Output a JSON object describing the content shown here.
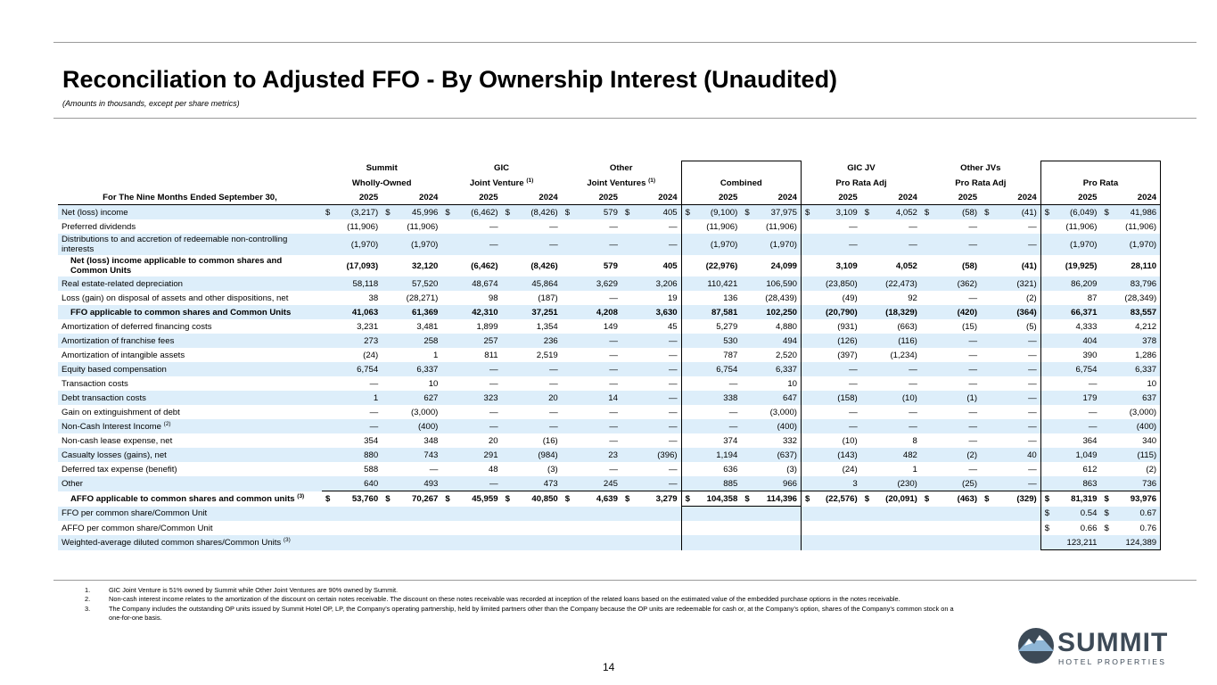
{
  "header": {
    "title": "Reconciliation to Adjusted FFO - By Ownership Interest (Unaudited)",
    "subtitle": "(Amounts in thousands, except per share metrics)"
  },
  "table": {
    "groups": [
      {
        "top": "Summit",
        "bottom": "Wholly-Owned"
      },
      {
        "top": "GIC",
        "bottom": "Joint Venture",
        "sup": "(1)"
      },
      {
        "top": "Other",
        "bottom": "Joint Ventures",
        "sup": "(1)"
      },
      {
        "bottom": "Combined"
      },
      {
        "top": "GIC JV",
        "bottom": "Pro Rata Adj"
      },
      {
        "top": "Other JVs",
        "bottom": "Pro Rata Adj"
      },
      {
        "bottom": "Pro Rata"
      }
    ],
    "period_label": "For The Nine Months Ended September 30,",
    "years": [
      "2025",
      "2024"
    ],
    "rows": [
      {
        "label": "Net (loss) income",
        "currency": "$",
        "cells": [
          "(3,217)",
          "45,996",
          "(6,462)",
          "(8,426)",
          "579",
          "405",
          "(9,100)",
          "37,975",
          "3,109",
          "4,052",
          "(58)",
          "(41)",
          "(6,049)",
          "41,986"
        ]
      },
      {
        "label": "Preferred dividends",
        "cells": [
          "(11,906)",
          "(11,906)",
          "—",
          "—",
          "—",
          "—",
          "(11,906)",
          "(11,906)",
          "—",
          "—",
          "—",
          "—",
          "(11,906)",
          "(11,906)"
        ]
      },
      {
        "label": "Distributions to and accretion of redeemable non-controlling interests",
        "cells": [
          "(1,970)",
          "(1,970)",
          "—",
          "—",
          "—",
          "—",
          "(1,970)",
          "(1,970)",
          "—",
          "—",
          "—",
          "—",
          "(1,970)",
          "(1,970)"
        ]
      },
      {
        "label": "Net (loss) income applicable to common shares and Common Units",
        "bold": true,
        "cells": [
          "(17,093)",
          "32,120",
          "(6,462)",
          "(8,426)",
          "579",
          "405",
          "(22,976)",
          "24,099",
          "3,109",
          "4,052",
          "(58)",
          "(41)",
          "(19,925)",
          "28,110"
        ]
      },
      {
        "label": "Real estate-related depreciation",
        "cells": [
          "58,118",
          "57,520",
          "48,674",
          "45,864",
          "3,629",
          "3,206",
          "110,421",
          "106,590",
          "(23,850)",
          "(22,473)",
          "(362)",
          "(321)",
          "86,209",
          "83,796"
        ]
      },
      {
        "label": "Loss (gain) on disposal of assets and other dispositions, net",
        "cells": [
          "38",
          "(28,271)",
          "98",
          "(187)",
          "—",
          "19",
          "136",
          "(28,439)",
          "(49)",
          "92",
          "—",
          "(2)",
          "87",
          "(28,349)"
        ]
      },
      {
        "label": "FFO applicable to common shares and Common Units",
        "bold": true,
        "cells": [
          "41,063",
          "61,369",
          "42,310",
          "37,251",
          "4,208",
          "3,630",
          "87,581",
          "102,250",
          "(20,790)",
          "(18,329)",
          "(420)",
          "(364)",
          "66,371",
          "83,557"
        ]
      },
      {
        "label": "Amortization of deferred financing costs",
        "cells": [
          "3,231",
          "3,481",
          "1,899",
          "1,354",
          "149",
          "45",
          "5,279",
          "4,880",
          "(931)",
          "(663)",
          "(15)",
          "(5)",
          "4,333",
          "4,212"
        ]
      },
      {
        "label": "Amortization of franchise fees",
        "cells": [
          "273",
          "258",
          "257",
          "236",
          "—",
          "—",
          "530",
          "494",
          "(126)",
          "(116)",
          "—",
          "—",
          "404",
          "378"
        ]
      },
      {
        "label": "Amortization of intangible assets",
        "cells": [
          "(24)",
          "1",
          "811",
          "2,519",
          "—",
          "—",
          "787",
          "2,520",
          "(397)",
          "(1,234)",
          "—",
          "—",
          "390",
          "1,286"
        ]
      },
      {
        "label": "Equity based compensation",
        "cells": [
          "6,754",
          "6,337",
          "—",
          "—",
          "—",
          "—",
          "6,754",
          "6,337",
          "—",
          "—",
          "—",
          "—",
          "6,754",
          "6,337"
        ]
      },
      {
        "label": "Transaction costs",
        "cells": [
          "—",
          "10",
          "—",
          "—",
          "—",
          "—",
          "—",
          "10",
          "—",
          "—",
          "—",
          "—",
          "—",
          "10"
        ]
      },
      {
        "label": "Debt transaction costs",
        "cells": [
          "1",
          "627",
          "323",
          "20",
          "14",
          "—",
          "338",
          "647",
          "(158)",
          "(10)",
          "(1)",
          "—",
          "179",
          "637"
        ]
      },
      {
        "label": "Gain on extinguishment of debt",
        "cells": [
          "—",
          "(3,000)",
          "—",
          "—",
          "—",
          "—",
          "—",
          "(3,000)",
          "—",
          "—",
          "—",
          "—",
          "—",
          "(3,000)"
        ]
      },
      {
        "label": "Non-Cash Interest Income",
        "sup": "(2)",
        "cells": [
          "—",
          "(400)",
          "—",
          "—",
          "—",
          "—",
          "—",
          "(400)",
          "—",
          "—",
          "—",
          "—",
          "—",
          "(400)"
        ]
      },
      {
        "label": "Non-cash lease expense, net",
        "cells": [
          "354",
          "348",
          "20",
          "(16)",
          "—",
          "—",
          "374",
          "332",
          "(10)",
          "8",
          "—",
          "—",
          "364",
          "340"
        ]
      },
      {
        "label": "Casualty losses (gains), net",
        "cells": [
          "880",
          "743",
          "291",
          "(984)",
          "23",
          "(396)",
          "1,194",
          "(637)",
          "(143)",
          "482",
          "(2)",
          "40",
          "1,049",
          "(115)"
        ]
      },
      {
        "label": "Deferred tax expense (benefit)",
        "cells": [
          "588",
          "—",
          "48",
          "(3)",
          "—",
          "—",
          "636",
          "(3)",
          "(24)",
          "1",
          "—",
          "—",
          "612",
          "(2)"
        ]
      },
      {
        "label": "Other",
        "cells": [
          "640",
          "493",
          "—",
          "473",
          "245",
          "—",
          "885",
          "966",
          "3",
          "(230)",
          "(25)",
          "—",
          "863",
          "736"
        ]
      },
      {
        "label": "AFFO applicable to common shares and common units",
        "sup": "(3)",
        "bold": true,
        "total": true,
        "currency": "$",
        "cells": [
          "53,760",
          "70,267",
          "45,959",
          "40,850",
          "4,639",
          "3,279",
          "104,358",
          "114,396",
          "(22,576)",
          "(20,091)",
          "(463)",
          "(329)",
          "81,319",
          "93,976"
        ]
      },
      {
        "label": "FFO per common share/Common Unit",
        "currency": "$",
        "cells": [
          null,
          null,
          null,
          null,
          null,
          null,
          null,
          null,
          null,
          null,
          null,
          null,
          "0.54",
          "0.67"
        ]
      },
      {
        "label": "AFFO per common share/Common Unit",
        "currency": "$",
        "cells": [
          null,
          null,
          null,
          null,
          null,
          null,
          null,
          null,
          null,
          null,
          null,
          null,
          "0.66",
          "0.76"
        ]
      },
      {
        "label": "Weighted-average diluted common shares/Common Units",
        "sup": "(3)",
        "cells": [
          null,
          null,
          null,
          null,
          null,
          null,
          null,
          null,
          null,
          null,
          null,
          null,
          "123,211",
          "124,389"
        ]
      }
    ]
  },
  "footnotes": [
    {
      "number": "1.",
      "text": "GIC Joint Venture is 51% owned by Summit while Other Joint Ventures are 90% owned by Summit."
    },
    {
      "number": "2.",
      "text": "Non-cash interest income relates to the amortization of the discount on certain notes receivable. The discount on these notes receivable was recorded at inception of the related loans based on the estimated value of the embedded purchase options in the notes receivable."
    },
    {
      "number": "3.",
      "text": "The Company includes the outstanding OP units issued by Summit Hotel OP, LP, the Company’s operating partnership, held by limited partners other than the Company because the OP units are redeemable for cash or, at the Company’s option, shares of the Company’s common stock on a one-for-one basis."
    }
  ],
  "page_number": "14",
  "logo": {
    "name": "SUMMIT",
    "tagline": "HOTEL PROPERTIES"
  }
}
